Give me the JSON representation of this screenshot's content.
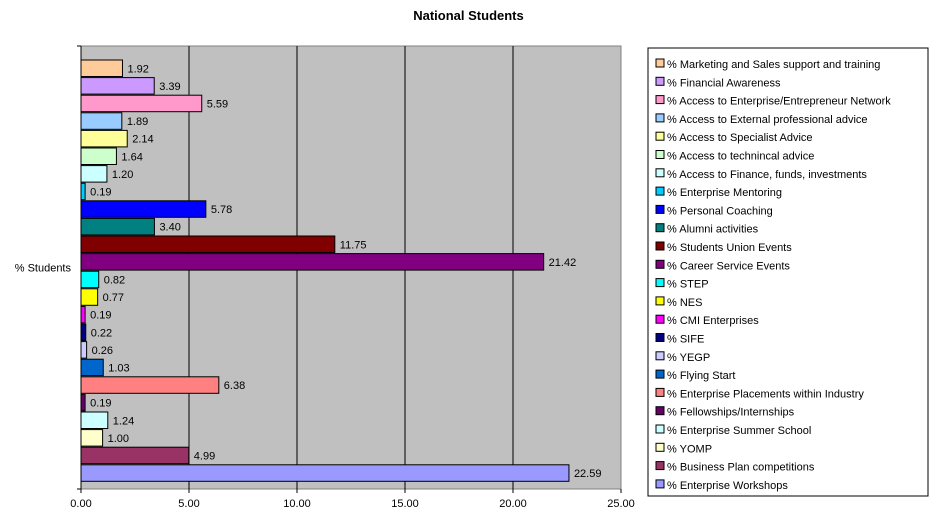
{
  "chart_data": {
    "type": "bar",
    "orientation": "horizontal",
    "title": "National Students",
    "category_label": "% Students",
    "xlim": [
      0,
      25
    ],
    "x_ticks": [
      "0.00",
      "5.00",
      "10.00",
      "15.00",
      "20.00",
      "25.00"
    ],
    "grid": true,
    "plot_background": "#c0c0c0",
    "legend_position": "right",
    "series": [
      {
        "name": "% Marketing and Sales support and training",
        "value": 1.92,
        "label": "1.92",
        "color": "#ffcc99"
      },
      {
        "name": "% Financial Awareness",
        "value": 3.39,
        "label": "3.39",
        "color": "#cc99ff"
      },
      {
        "name": "% Access to Enterprise/Entrepreneur Network",
        "value": 5.59,
        "label": "5.59",
        "color": "#ff99cc"
      },
      {
        "name": "% Access to External professional advice",
        "value": 1.89,
        "label": "1.89",
        "color": "#99ccff"
      },
      {
        "name": "% Access to Specialist Advice",
        "value": 2.14,
        "label": "2.14",
        "color": "#ffff99"
      },
      {
        "name": "% Access to technincal advice",
        "value": 1.64,
        "label": "1.64",
        "color": "#ccffcc"
      },
      {
        "name": "% Access to Finance, funds, investments",
        "value": 1.2,
        "label": "1.20",
        "color": "#ccffff"
      },
      {
        "name": "% Enterprise Mentoring",
        "value": 0.19,
        "label": "0.19",
        "color": "#00ccff"
      },
      {
        "name": "% Personal Coaching",
        "value": 5.78,
        "label": "5.78",
        "color": "#0000ff"
      },
      {
        "name": "% Alumni activities",
        "value": 3.4,
        "label": "3.40",
        "color": "#008080"
      },
      {
        "name": "% Students Union Events",
        "value": 11.75,
        "label": "11.75",
        "color": "#800000"
      },
      {
        "name": "% Career Service Events",
        "value": 21.42,
        "label": "21.42",
        "color": "#800080"
      },
      {
        "name": "% STEP",
        "value": 0.82,
        "label": "0.82",
        "color": "#00ffff"
      },
      {
        "name": "% NES",
        "value": 0.77,
        "label": "0.77",
        "color": "#ffff00"
      },
      {
        "name": "% CMI Enterprises",
        "value": 0.19,
        "label": "0.19",
        "color": "#ff00ff"
      },
      {
        "name": "% SIFE",
        "value": 0.22,
        "label": "0.22",
        "color": "#000080"
      },
      {
        "name": "% YEGP",
        "value": 0.26,
        "label": "0.26",
        "color": "#ccccff"
      },
      {
        "name": "% Flying Start",
        "value": 1.03,
        "label": "1.03",
        "color": "#0066cc"
      },
      {
        "name": "% Enterprise Placements within Industry",
        "value": 6.38,
        "label": "6.38",
        "color": "#ff8080"
      },
      {
        "name": "% Fellowships/Internships",
        "value": 0.19,
        "label": "0.19",
        "color": "#660066"
      },
      {
        "name": "% Enterprise Summer School",
        "value": 1.24,
        "label": "1.24",
        "color": "#ccffff"
      },
      {
        "name": "% YOMP",
        "value": 1.0,
        "label": "1.00",
        "color": "#ffffcc"
      },
      {
        "name": "% Business Plan competitions",
        "value": 4.99,
        "label": "4.99",
        "color": "#993366"
      },
      {
        "name": "% Enterprise Workshops",
        "value": 22.59,
        "label": "22.59",
        "color": "#9999ff"
      }
    ]
  }
}
